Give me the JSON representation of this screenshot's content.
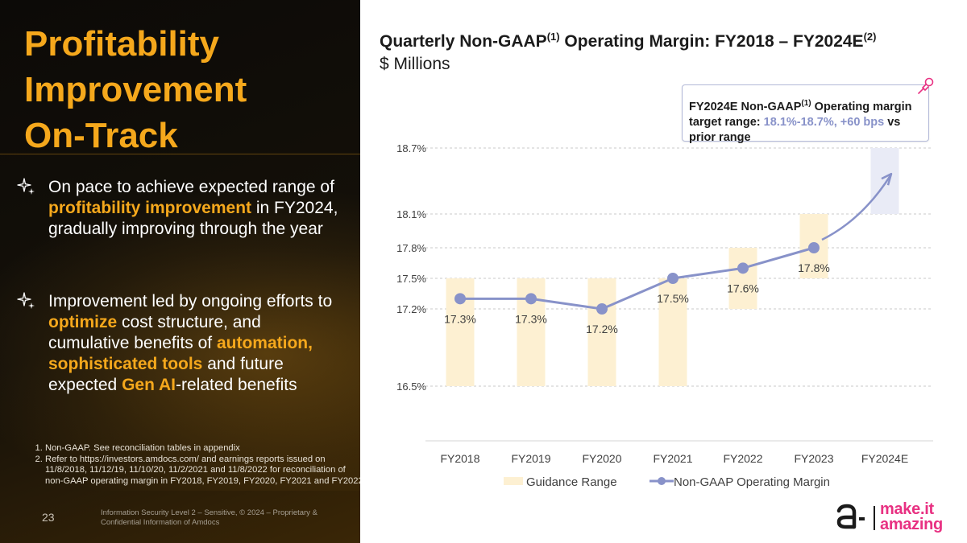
{
  "slide": {
    "title_lines": [
      "Profitability",
      "Improvement",
      "On-Track"
    ],
    "bullets": [
      {
        "parts": [
          {
            "text": "On pace to achieve expected range of ",
            "hl": false
          },
          {
            "text": "profitability improvement",
            "hl": true
          },
          {
            "text": " in FY2024, gradually improving through the year",
            "hl": false
          }
        ]
      },
      {
        "parts": [
          {
            "text": "Improvement led by ongoing efforts to ",
            "hl": false
          },
          {
            "text": "optimize",
            "hl": true
          },
          {
            "text": " cost structure, and cumulative benefits of ",
            "hl": false
          },
          {
            "text": "automation, sophisticated tools",
            "hl": true
          },
          {
            "text": " and future expected ",
            "hl": false
          },
          {
            "text": "Gen AI",
            "hl": true
          },
          {
            "text": "-related benefits",
            "hl": false
          }
        ]
      }
    ],
    "footnotes": [
      "Non-GAAP. See reconciliation tables in appendix",
      "Refer to https://investors.amdocs.com/ and earnings reports issued on 11/8/2018, 11/12/19, 11/10/20, 11/2/2021 and 11/8/2022 for reconciliation of non-GAAP operating margin in FY2018, FY2019, FY2020, FY2021 and FY2022"
    ],
    "page_number": "23",
    "confidential": "Information Security Level 2 – Sensitive, © 2024 – Proprietary & Confidential Information of Amdocs",
    "logo": {
      "line1": "make.it",
      "line2": "amazing",
      "icon": "amdocs-logo-icon"
    }
  },
  "callout": {
    "prefix": "FY2024E Non-GAAP",
    "sup": "(1)",
    "mid": " Operating margin target range: ",
    "accent": "18.1%-18.7%, +60 bps",
    "suffix": " vs prior range",
    "icon": "pushpin-icon"
  },
  "colors": {
    "accent_orange": "#f5a81c",
    "guidance_fill": "#fdf0d2",
    "guidance_fill_2024": "#e9ebf6",
    "line": "#8892c9",
    "logo_pink": "#e83182"
  },
  "chart_data": {
    "type": "bar+line",
    "title": {
      "main": "Quarterly Non-GAAP",
      "sup1": "(1)",
      "mid": " Operating Margin: FY2018 – FY2024E",
      "sup2": "(2)"
    },
    "subtitle": "$ Millions",
    "categories": [
      "FY2018",
      "FY2019",
      "FY2020",
      "FY2021",
      "FY2022",
      "FY2023",
      "FY2024E"
    ],
    "y_ticks": [
      16.5,
      17.2,
      17.5,
      17.8,
      18.1,
      18.7
    ],
    "y_tick_labels": [
      "16.5%",
      "17.2%",
      "17.5%",
      "17.8%",
      "18.1%",
      "18.7%"
    ],
    "ylim": [
      16.5,
      18.7
    ],
    "grid": true,
    "series": [
      {
        "name": "Guidance Range",
        "type": "range-bar",
        "ranges": [
          [
            16.5,
            17.5
          ],
          [
            16.5,
            17.5
          ],
          [
            16.5,
            17.5
          ],
          [
            16.5,
            17.5
          ],
          [
            17.2,
            17.8
          ],
          [
            17.5,
            18.1
          ],
          [
            18.1,
            18.7
          ]
        ]
      },
      {
        "name": "Non-GAAP Operating Margin",
        "type": "line",
        "values": [
          17.3,
          17.3,
          17.2,
          17.5,
          17.6,
          17.8,
          null
        ],
        "labels": [
          "17.3%",
          "17.3%",
          "17.2%",
          "17.5%",
          "17.6%",
          "17.8%",
          ""
        ],
        "projection_arrow": true
      }
    ],
    "legend": {
      "position": "bottom",
      "entries": [
        "Guidance Range",
        "Non-GAAP Operating Margin"
      ]
    }
  }
}
